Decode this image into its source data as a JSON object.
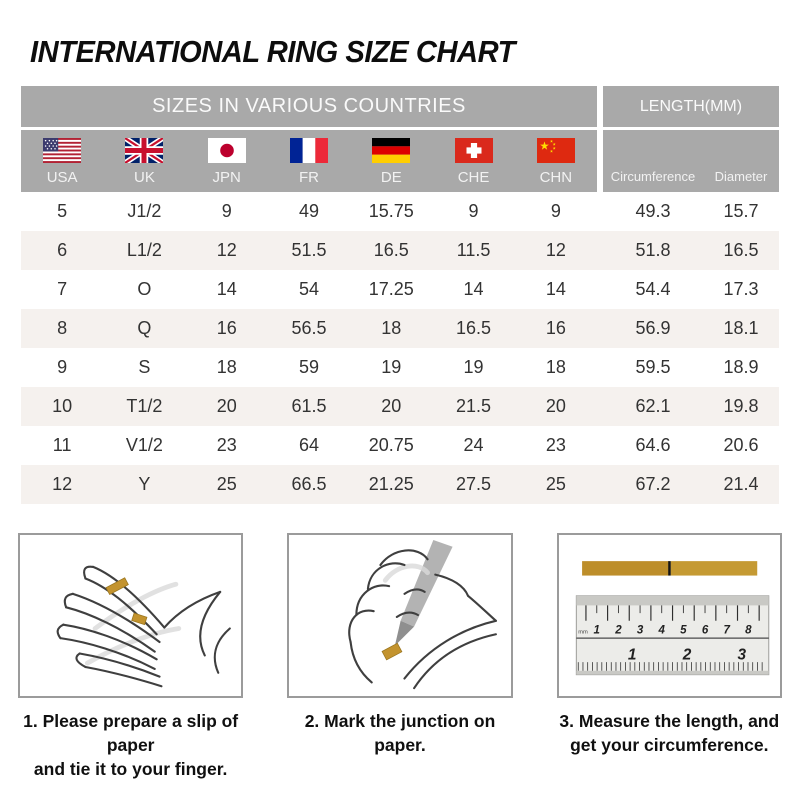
{
  "title": "INTERNATIONAL RING SIZE CHART",
  "colors": {
    "header_gray": "#a9a9a9",
    "row_stripe": "#f5f1ee",
    "paper_tan": "#c3932e",
    "box_border": "#9b9b9b"
  },
  "table": {
    "group_headers": {
      "countries": "SIZES IN VARIOUS COUNTRIES",
      "length": "LENGTH(MM)"
    },
    "country_codes": [
      "USA",
      "UK",
      "JPN",
      "FR",
      "DE",
      "CHE",
      "CHN"
    ],
    "flags": [
      "usa",
      "uk",
      "japan",
      "france",
      "germany",
      "switzerland",
      "china"
    ],
    "length_columns": [
      "Circumference",
      "Diameter"
    ],
    "rows": [
      [
        "5",
        "J1/2",
        "9",
        "49",
        "15.75",
        "9",
        "9",
        "49.3",
        "15.7"
      ],
      [
        "6",
        "L1/2",
        "12",
        "51.5",
        "16.5",
        "11.5",
        "12",
        "51.8",
        "16.5"
      ],
      [
        "7",
        "O",
        "14",
        "54",
        "17.25",
        "14",
        "14",
        "54.4",
        "17.3"
      ],
      [
        "8",
        "Q",
        "16",
        "56.5",
        "18",
        "16.5",
        "16",
        "56.9",
        "18.1"
      ],
      [
        "9",
        "S",
        "18",
        "59",
        "19",
        "19",
        "18",
        "59.5",
        "18.9"
      ],
      [
        "10",
        "T1/2",
        "20",
        "61.5",
        "20",
        "21.5",
        "20",
        "62.1",
        "19.8"
      ],
      [
        "11",
        "V1/2",
        "23",
        "64",
        "20.75",
        "24",
        "23",
        "64.6",
        "20.6"
      ],
      [
        "12",
        "Y",
        "25",
        "66.5",
        "21.25",
        "27.5",
        "25",
        "67.2",
        "21.4"
      ]
    ]
  },
  "steps": [
    {
      "caption_line1": "1. Please prepare a slip of paper",
      "caption_line2": "and tie it to your finger.",
      "illustration": "hand-with-paper-slip"
    },
    {
      "caption_line1": "2. Mark the junction on paper.",
      "caption_line2": "",
      "illustration": "mark-junction-on-paper"
    },
    {
      "caption_line1": "3. Measure the length, and",
      "caption_line2": "get your circumference.",
      "illustration": "ruler-measurement"
    }
  ],
  "ruler_scale": {
    "unit_top": "mm",
    "cm_numbers": [
      "1",
      "2",
      "3",
      "4",
      "5",
      "6",
      "7",
      "8"
    ],
    "inch_numbers": [
      "1",
      "2",
      "3"
    ]
  }
}
